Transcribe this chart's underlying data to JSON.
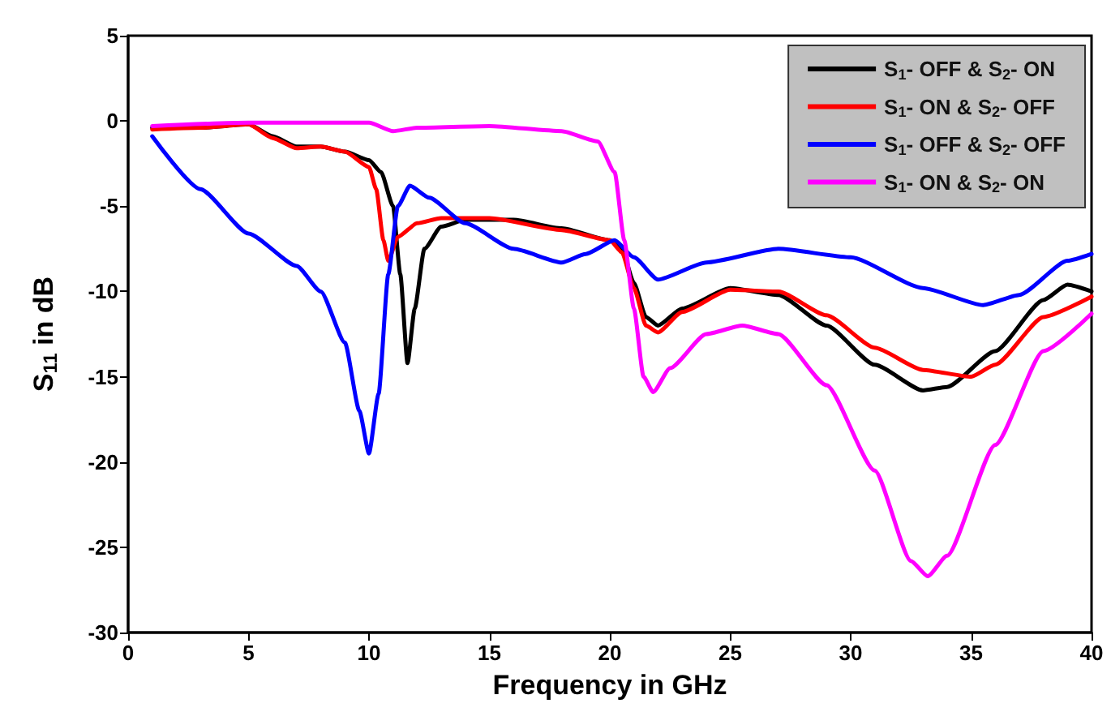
{
  "chart_data": {
    "type": "line",
    "xlabel": "Frequency in GHz",
    "ylabel": "S$_{11}$ in dB",
    "xlim": [
      0,
      40
    ],
    "xticks": [
      0,
      5,
      10,
      15,
      20,
      25,
      30,
      35,
      40
    ],
    "ylim": [
      -30,
      5
    ],
    "yticks": [
      -30,
      -25,
      -20,
      -15,
      -10,
      -5,
      0,
      5
    ],
    "grid": false,
    "legend": "top right",
    "marker": "none",
    "line_style": "solid",
    "series": [
      {
        "name": "S$_{1}$- OFF & S$_{2}$- ON",
        "color": "#000000",
        "x": [
          1,
          3,
          5,
          6,
          7,
          8,
          9,
          10,
          10.5,
          11,
          11.3,
          11.6,
          11.9,
          12.3,
          13,
          14,
          16,
          18,
          20,
          20.5,
          21,
          21.5,
          22,
          23,
          25,
          27,
          29,
          31,
          33,
          34,
          36,
          38,
          39,
          40
        ],
        "values": [
          -0.4,
          -0.4,
          -0.2,
          -0.9,
          -1.5,
          -1.5,
          -1.8,
          -2.3,
          -3,
          -5,
          -9,
          -14.2,
          -11,
          -7.5,
          -6.2,
          -5.8,
          -5.8,
          -6.3,
          -7,
          -7.5,
          -9.5,
          -11.5,
          -12,
          -11,
          -9.8,
          -10.2,
          -12,
          -14.3,
          -15.8,
          -15.6,
          -13.5,
          -10.5,
          -9.6,
          -10
        ]
      },
      {
        "name": "S$_{1}$- ON & S$_{2}$- OFF",
        "color": "#ff0000",
        "x": [
          1,
          3,
          5,
          6,
          7,
          8,
          9,
          10,
          10.3,
          10.6,
          10.8,
          11.2,
          12,
          13,
          15,
          18,
          20,
          20.5,
          21,
          21.5,
          22,
          23,
          25,
          27,
          29,
          31,
          33,
          35,
          36,
          38,
          40
        ],
        "values": [
          -0.5,
          -0.4,
          -0.2,
          -1,
          -1.6,
          -1.5,
          -1.8,
          -2.7,
          -4,
          -7,
          -8.2,
          -6.8,
          -6,
          -5.7,
          -5.7,
          -6.4,
          -7,
          -7.7,
          -9.8,
          -12,
          -12.4,
          -11.2,
          -9.9,
          -10,
          -11.4,
          -13.3,
          -14.6,
          -15,
          -14.3,
          -11.5,
          -10.3
        ]
      },
      {
        "name": "S$_{1}$- OFF & S$_{2}$- OFF",
        "color": "#0000ff",
        "x": [
          1,
          3,
          5,
          7,
          8,
          9,
          9.6,
          10,
          10.4,
          10.8,
          11.2,
          11.7,
          12.5,
          14,
          16,
          18,
          19,
          20.2,
          21,
          22,
          24,
          27,
          30,
          33,
          35.5,
          37,
          39,
          40
        ],
        "values": [
          -0.9,
          -4,
          -6.6,
          -8.5,
          -10,
          -13,
          -17,
          -19.5,
          -16,
          -9,
          -5,
          -3.8,
          -4.5,
          -6,
          -7.5,
          -8.3,
          -7.8,
          -7,
          -8,
          -9.3,
          -8.3,
          -7.5,
          -8,
          -9.8,
          -10.8,
          -10.2,
          -8.2,
          -7.8
        ]
      },
      {
        "name": "S$_{1}$- ON & S$_{2}$- ON",
        "color": "#ff00ff",
        "x": [
          1,
          5,
          10,
          11,
          12,
          15,
          18,
          19.5,
          20.2,
          20.6,
          21,
          21.4,
          21.8,
          22.5,
          24,
          25.5,
          27,
          29,
          31,
          32.5,
          33.2,
          34,
          36,
          38,
          40
        ],
        "values": [
          -0.3,
          -0.1,
          -0.1,
          -0.6,
          -0.4,
          -0.3,
          -0.6,
          -1.2,
          -3,
          -7,
          -11,
          -15,
          -15.9,
          -14.5,
          -12.5,
          -12,
          -12.5,
          -15.5,
          -20.5,
          -25.8,
          -26.7,
          -25.5,
          -19,
          -13.5,
          -11.3
        ]
      }
    ]
  }
}
